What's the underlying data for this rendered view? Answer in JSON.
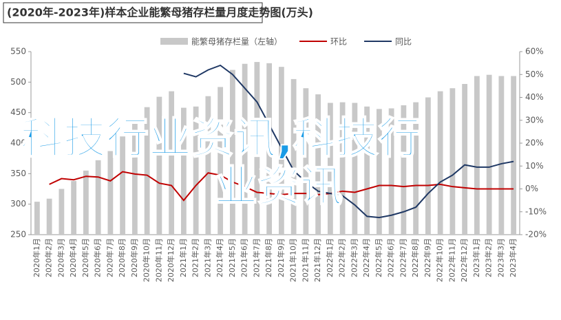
{
  "chart_data": {
    "type": "combo",
    "title": "(2020年-2023年)样本企业能繁母猪存栏量月度走势图(万头)",
    "categories": [
      "2020年1月",
      "2020年2月",
      "2020年3月",
      "2020年4月",
      "2020年5月",
      "2020年6月",
      "2020年7月",
      "2020年8月",
      "2020年9月",
      "2020年10月",
      "2020年11月",
      "2020年12月",
      "2021年1月",
      "2021年2月",
      "2021年3月",
      "2021年4月",
      "2021年5月",
      "2021年6月",
      "2021年7月",
      "2021年8月",
      "2021年9月",
      "2021年10月",
      "2021年11月",
      "2021年12月",
      "2022年1月",
      "2022年2月",
      "2022年3月",
      "2022年4月",
      "2022年5月",
      "2022年6月",
      "2022年7月",
      "2022年8月",
      "2022年9月",
      "2022年10月",
      "2022年11月",
      "2022年12月",
      "2023年1月",
      "2023年2月",
      "2023年3月",
      "2023年4月"
    ],
    "series": [
      {
        "name": "能繁母猪存栏量（左轴）",
        "type": "bar",
        "color": "#c8c8c8",
        "values": [
          304,
          309,
          325,
          338,
          355,
          372,
          387,
          411,
          440,
          459,
          476,
          485,
          458,
          460,
          477,
          492,
          520,
          530,
          533,
          531,
          525,
          505,
          490,
          480,
          466,
          467,
          466,
          460,
          456,
          457,
          462,
          467,
          475,
          485,
          490,
          497,
          510,
          512,
          510,
          510
        ]
      },
      {
        "name": "环比",
        "type": "line",
        "axis": "y2",
        "color": "#c00000",
        "values": [
          null,
          2,
          4.5,
          4,
          5.5,
          5.2,
          3.5,
          7.5,
          6.5,
          6,
          2.5,
          1.5,
          -5,
          1.5,
          7,
          6,
          3,
          1,
          -1.5,
          -2,
          -2.5,
          -2,
          -2,
          -2.5,
          -2,
          -1,
          -1.5,
          0,
          1.5,
          1.5,
          1,
          1.5,
          1.5,
          2,
          1,
          0.5,
          0,
          0,
          0,
          0
        ]
      },
      {
        "name": "同比",
        "type": "line",
        "axis": "y2",
        "color": "#1f3864",
        "values": [
          null,
          null,
          null,
          null,
          null,
          null,
          null,
          null,
          null,
          null,
          null,
          null,
          50.5,
          49,
          52,
          54,
          50,
          44,
          38,
          28,
          18,
          8,
          3,
          -1,
          -2,
          -3,
          -7,
          -12,
          -12.5,
          -11.5,
          -10,
          -8,
          -2,
          3,
          6,
          10.5,
          9.5,
          9.5,
          11,
          12
        ]
      }
    ],
    "ylim": [
      250,
      550
    ],
    "yticks": [
      250,
      300,
      350,
      400,
      450,
      500,
      550
    ],
    "y2lim": [
      -20,
      60
    ],
    "y2ticks": [
      {
        "value": -20,
        "label": "-20%"
      },
      {
        "value": -10,
        "label": "-10%"
      },
      {
        "value": 0,
        "label": "0%"
      },
      {
        "value": 10,
        "label": "10%"
      },
      {
        "value": 20,
        "label": "20%"
      },
      {
        "value": 30,
        "label": "30%"
      },
      {
        "value": 40,
        "label": "40%"
      },
      {
        "value": 50,
        "label": "50%"
      },
      {
        "value": 60,
        "label": "60%"
      }
    ],
    "watermark": [
      "科技行业资讯,科技行",
      "业资讯"
    ]
  }
}
